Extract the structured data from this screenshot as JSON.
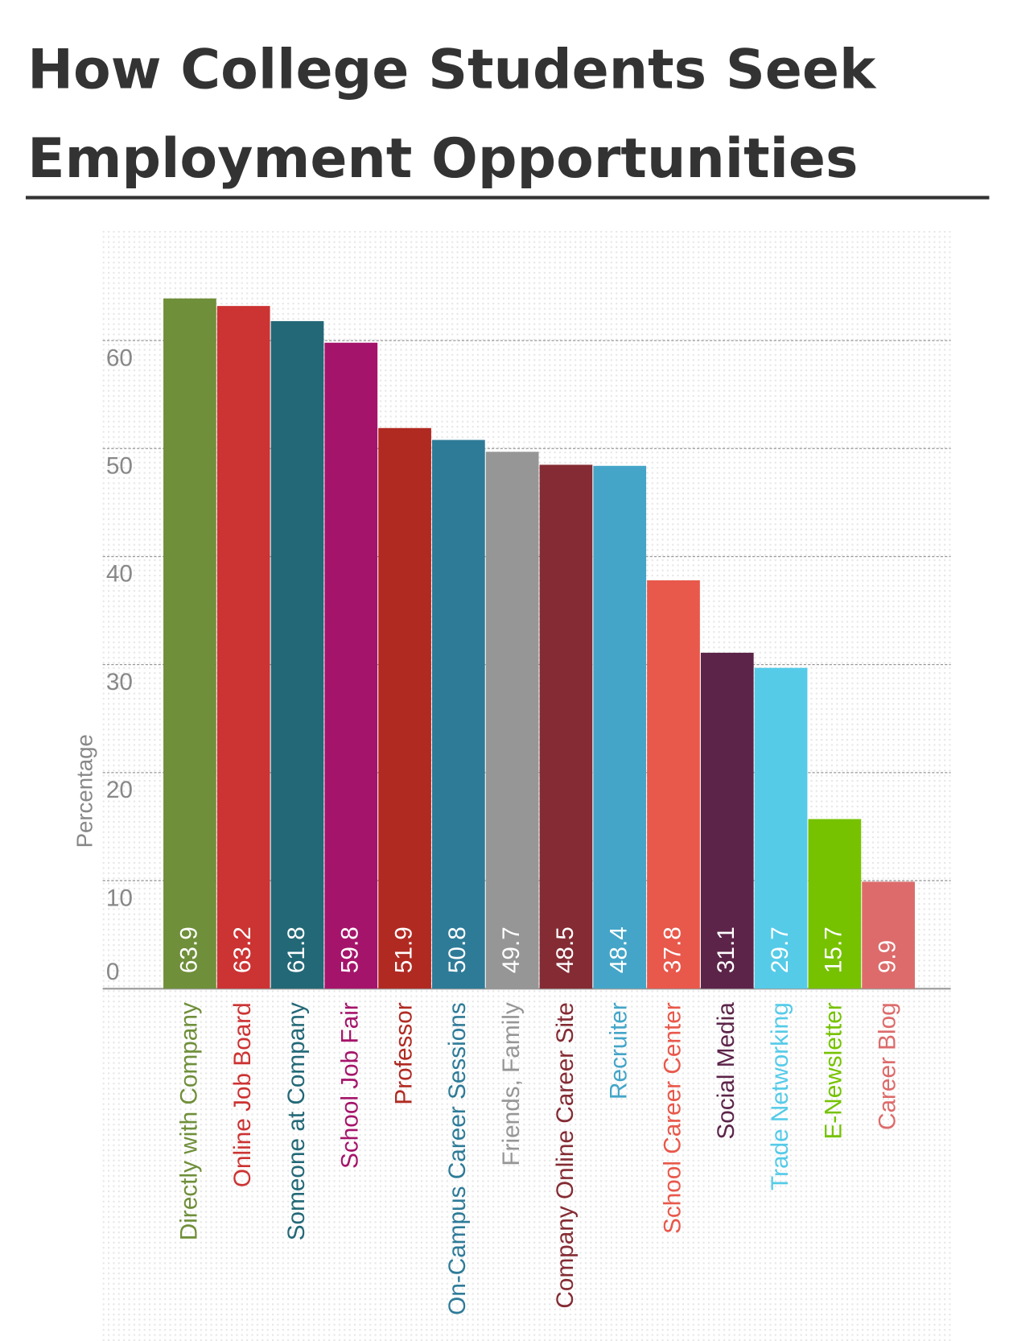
{
  "chart_data": {
    "type": "bar",
    "title_lines": [
      "How College Students Seek",
      "Employment Opportunities"
    ],
    "y_label": "Percentage",
    "categories": [
      "Directly with Company",
      "Online Job Board",
      "Someone at Company",
      "School Job Fair",
      "Professor",
      "On-Campus Career Sessions",
      "Friends, Family",
      "Company Online Career Site",
      "Recruiter",
      "School Career Center",
      "Social Media",
      "Trade Networking",
      "E-Newsletter",
      "Career Blog"
    ],
    "values": [
      63.9,
      63.2,
      61.8,
      59.8,
      51.9,
      50.8,
      49.7,
      48.5,
      48.4,
      37.8,
      31.1,
      29.7,
      15.7,
      9.9
    ],
    "colors": [
      "#6f8f3a",
      "#cc3333",
      "#236877",
      "#a5146b",
      "#b02a22",
      "#2e7b98",
      "#969696",
      "#842b33",
      "#44a5c8",
      "#e8584b",
      "#5c2449",
      "#55cbe8",
      "#76c200",
      "#dd6b6b"
    ],
    "ylim": [
      0,
      70
    ],
    "yticks": [
      0,
      10,
      20,
      30,
      40,
      50,
      60
    ],
    "grid": true
  }
}
